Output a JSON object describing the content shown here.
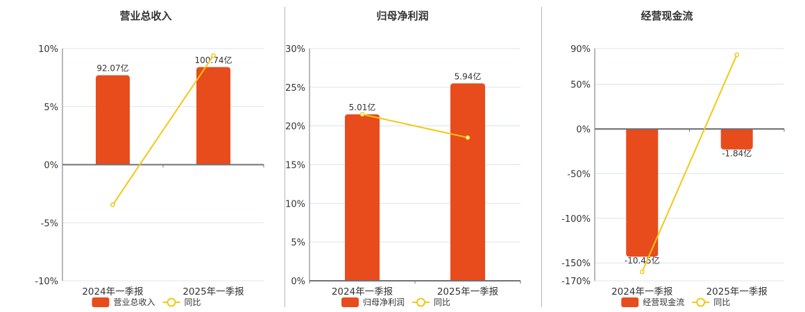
{
  "colors": {
    "bar": "#E84C1C",
    "line": "#F2C811",
    "grid": "#DCE3EE",
    "axis": "#6E7079",
    "separator": "#B5B5B5"
  },
  "panels": [
    {
      "title": "营业总收入",
      "legend_bar": "营业总收入",
      "legend_line": "同比"
    },
    {
      "title": "归母净利润",
      "legend_bar": "归母净利润",
      "legend_line": "同比"
    },
    {
      "title": "经营现金流",
      "legend_bar": "经营现金流",
      "legend_line": "同比"
    }
  ],
  "chart_data": [
    {
      "type": "bar+line",
      "title": "营业总收入",
      "categories": [
        "2024年一季报",
        "2025年一季报"
      ],
      "series": [
        {
          "name": "营业总收入",
          "type": "bar",
          "values": [
            92.07,
            100.74
          ],
          "labels": [
            "92.07亿",
            "100.74亿"
          ],
          "unit": "亿"
        },
        {
          "name": "同比",
          "type": "line",
          "values": [
            -3.45,
            9.4
          ],
          "unit": "%"
        }
      ],
      "yaxis_ticks": [
        "10%",
        "5%",
        "0%",
        "-5%",
        "-10%"
      ],
      "ylim": [
        -10,
        10
      ],
      "bar_percent_heights": [
        7.7,
        8.4
      ],
      "legend_position": "bottom",
      "grid": true
    },
    {
      "type": "bar+line",
      "title": "归母净利润",
      "categories": [
        "2024年一季报",
        "2025年一季报"
      ],
      "series": [
        {
          "name": "归母净利润",
          "type": "bar",
          "values": [
            5.01,
            5.94
          ],
          "labels": [
            "5.01亿",
            "5.94亿"
          ],
          "unit": "亿"
        },
        {
          "name": "同比",
          "type": "line",
          "values": [
            21.5,
            18.5
          ],
          "unit": "%"
        }
      ],
      "yaxis_ticks": [
        "30%",
        "25%",
        "20%",
        "15%",
        "10%",
        "5%",
        "0%"
      ],
      "ylim": [
        0,
        30
      ],
      "bar_percent_heights": [
        21.5,
        25.5
      ],
      "legend_position": "bottom",
      "grid": true
    },
    {
      "type": "bar+line",
      "title": "经营现金流",
      "categories": [
        "2024年一季报",
        "2025年一季报"
      ],
      "series": [
        {
          "name": "经营现金流",
          "type": "bar",
          "values": [
            -10.45,
            -1.84
          ],
          "labels": [
            "-10.45亿",
            "-1.84亿"
          ],
          "unit": "亿"
        },
        {
          "name": "同比",
          "type": "line",
          "values": [
            -160,
            83
          ],
          "unit": "%"
        }
      ],
      "yaxis_ticks": [
        "90%",
        "50%",
        "0%",
        "-50%",
        "-100%",
        "-150%",
        "-170%"
      ],
      "ylim": [
        -170,
        90
      ],
      "bar_percent_heights": [
        -143,
        -23
      ],
      "legend_position": "bottom",
      "grid": true
    }
  ]
}
